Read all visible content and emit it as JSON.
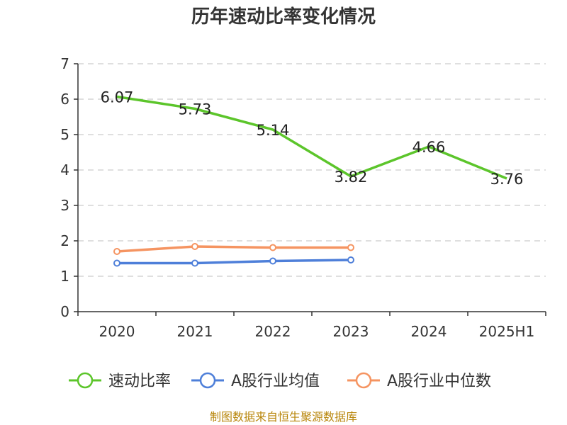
{
  "chart_data": {
    "type": "line",
    "title": "历年速动比率变化情况",
    "categories": [
      "2020",
      "2021",
      "2022",
      "2023",
      "2024",
      "2025H1"
    ],
    "ylim": [
      0,
      7
    ],
    "yticks": [
      "0",
      "1",
      "2",
      "3",
      "4",
      "5",
      "6",
      "7"
    ],
    "grid": true,
    "legend_position": "bottom",
    "series": [
      {
        "name": "速动比率",
        "color": "#5cc52b",
        "values": [
          6.07,
          5.73,
          5.14,
          3.82,
          4.66,
          3.76
        ],
        "labels": [
          "6.07",
          "5.73",
          "5.14",
          "3.82",
          "4.66",
          "3.76"
        ]
      },
      {
        "name": "A股行业均值",
        "color": "#4e7fd9",
        "values": [
          1.37,
          1.37,
          1.43,
          1.46,
          null,
          null
        ]
      },
      {
        "name": "A股行业中位数",
        "color": "#f59461",
        "values": [
          1.7,
          1.84,
          1.81,
          1.81,
          null,
          null
        ]
      }
    ]
  },
  "footer": {
    "source": "制图数据来自恒生聚源数据库"
  }
}
